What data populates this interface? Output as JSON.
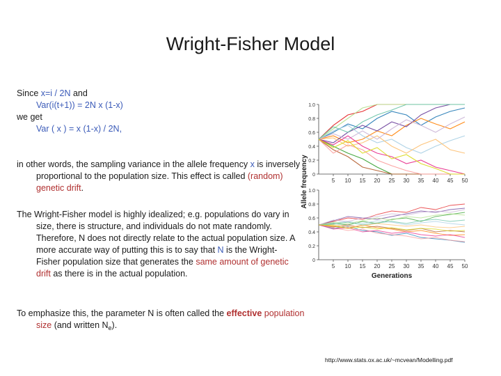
{
  "slide": {
    "title": "Wright-Fisher Model",
    "p1": {
      "l1_a": "Since ",
      "l1_b": "x=i / 2N",
      "l1_c": " and",
      "l2": "Var(i(t+1)) = 2N x (1-x)",
      "l3": "we get",
      "l4": "Var ( x ) = x (1-x) / 2N,"
    },
    "p2": {
      "a": "in other words, the sampling variance in the allele frequency ",
      "b": "x",
      "c": " is inversely proportional to the population size. This effect is called ",
      "d": "(random) genetic drift",
      "e": "."
    },
    "p3": {
      "a": "The Wright-Fisher model is highly idealized; e.g. populations do vary in size, there is structure, and individuals do not mate randomly.  Therefore, N does not directly relate to the actual population size.  A more accurate way of putting this is to say that ",
      "b": "N",
      "c": " is the  Wright-Fisher population size that generates the ",
      "d": "same amount of genetic drift",
      "e": " as there is in the actual population."
    },
    "p4": {
      "a": "To emphasize this, the parameter N is often called the ",
      "b": "effective",
      "c": " ",
      "d": "population size",
      "e": " (and written N",
      "sub": "e",
      "f": ")."
    },
    "source": "http://www.stats.ox.ac.uk/~mcvean/Modelling.pdf"
  },
  "figure": {
    "ylabel": "Allele frequency",
    "xlabel": "Generations",
    "yticks": [
      "0",
      "0.2",
      "0.4",
      "0.6",
      "0.8",
      "1.0"
    ],
    "xticks": [
      "5",
      "10",
      "15",
      "20",
      "25",
      "30",
      "35",
      "40",
      "45",
      "50"
    ],
    "colors": [
      "#e41a1c",
      "#1f78b4",
      "#33a02c",
      "#ff7f00",
      "#6a3d9a",
      "#b15928",
      "#a6cee3",
      "#fb9a99",
      "#b2df8a",
      "#fdbf6f",
      "#cab2d6",
      "#e7298a",
      "#66c2a5",
      "#d9d919"
    ]
  },
  "chart_data": [
    {
      "type": "line",
      "title": "",
      "xlabel": "",
      "ylabel": "Allele frequency",
      "xlim": [
        0,
        50
      ],
      "ylim": [
        0,
        1
      ],
      "x": [
        0,
        5,
        10,
        15,
        20,
        25,
        30,
        35,
        40,
        45,
        50
      ],
      "series": [
        {
          "values": [
            0.5,
            0.7,
            0.85,
            0.9,
            1.0,
            1.0,
            1.0,
            1.0,
            1.0,
            1.0,
            1.0
          ]
        },
        {
          "values": [
            0.5,
            0.6,
            0.72,
            0.65,
            0.8,
            0.9,
            0.85,
            0.7,
            0.82,
            0.9,
            0.95
          ]
        },
        {
          "values": [
            0.5,
            0.4,
            0.3,
            0.22,
            0.1,
            0.0,
            0.0,
            0.0,
            0.0,
            0.0,
            0.0
          ]
        },
        {
          "values": [
            0.5,
            0.55,
            0.45,
            0.5,
            0.62,
            0.55,
            0.7,
            0.8,
            0.72,
            0.65,
            0.75
          ]
        },
        {
          "values": [
            0.5,
            0.45,
            0.6,
            0.7,
            0.62,
            0.75,
            0.68,
            0.85,
            0.95,
            1.0,
            1.0
          ]
        },
        {
          "values": [
            0.5,
            0.35,
            0.25,
            0.1,
            0.05,
            0.0,
            0.0,
            0.0,
            0.0,
            0.0,
            0.0
          ]
        },
        {
          "values": [
            0.5,
            0.62,
            0.7,
            0.55,
            0.45,
            0.5,
            0.38,
            0.3,
            0.4,
            0.48,
            0.55
          ]
        },
        {
          "values": [
            0.5,
            0.3,
            0.42,
            0.35,
            0.2,
            0.12,
            0.05,
            0.0,
            0.0,
            0.0,
            0.0
          ]
        },
        {
          "values": [
            0.5,
            0.65,
            0.8,
            0.95,
            1.0,
            1.0,
            1.0,
            1.0,
            1.0,
            1.0,
            1.0
          ]
        },
        {
          "values": [
            0.5,
            0.52,
            0.4,
            0.45,
            0.55,
            0.4,
            0.3,
            0.42,
            0.5,
            0.35,
            0.3
          ]
        },
        {
          "values": [
            0.5,
            0.58,
            0.5,
            0.62,
            0.5,
            0.65,
            0.78,
            0.7,
            0.6,
            0.72,
            0.82
          ]
        },
        {
          "values": [
            0.5,
            0.42,
            0.55,
            0.4,
            0.3,
            0.25,
            0.15,
            0.2,
            0.1,
            0.05,
            0.0
          ]
        },
        {
          "values": [
            0.5,
            0.68,
            0.6,
            0.75,
            0.85,
            0.92,
            1.0,
            1.0,
            1.0,
            1.0,
            1.0
          ]
        },
        {
          "values": [
            0.5,
            0.38,
            0.48,
            0.3,
            0.38,
            0.22,
            0.28,
            0.15,
            0.08,
            0.0,
            0.0
          ]
        }
      ]
    },
    {
      "type": "line",
      "title": "",
      "xlabel": "Generations",
      "ylabel": "Allele frequency",
      "xlim": [
        0,
        50
      ],
      "ylim": [
        0,
        1
      ],
      "x": [
        0,
        5,
        10,
        15,
        20,
        25,
        30,
        35,
        40,
        45,
        50
      ],
      "series": [
        {
          "values": [
            0.5,
            0.55,
            0.6,
            0.58,
            0.65,
            0.7,
            0.68,
            0.75,
            0.72,
            0.78,
            0.8
          ]
        },
        {
          "values": [
            0.5,
            0.45,
            0.48,
            0.42,
            0.4,
            0.35,
            0.38,
            0.32,
            0.3,
            0.28,
            0.25
          ]
        },
        {
          "values": [
            0.5,
            0.52,
            0.5,
            0.55,
            0.52,
            0.58,
            0.6,
            0.55,
            0.62,
            0.65,
            0.68
          ]
        },
        {
          "values": [
            0.5,
            0.48,
            0.45,
            0.5,
            0.46,
            0.44,
            0.4,
            0.42,
            0.38,
            0.35,
            0.36
          ]
        },
        {
          "values": [
            0.5,
            0.56,
            0.62,
            0.6,
            0.58,
            0.62,
            0.66,
            0.7,
            0.68,
            0.72,
            0.74
          ]
        },
        {
          "values": [
            0.5,
            0.47,
            0.5,
            0.46,
            0.48,
            0.45,
            0.42,
            0.45,
            0.4,
            0.42,
            0.4
          ]
        },
        {
          "values": [
            0.5,
            0.53,
            0.55,
            0.52,
            0.56,
            0.54,
            0.5,
            0.53,
            0.55,
            0.52,
            0.5
          ]
        },
        {
          "values": [
            0.5,
            0.46,
            0.42,
            0.44,
            0.38,
            0.36,
            0.34,
            0.3,
            0.32,
            0.28,
            0.26
          ]
        },
        {
          "values": [
            0.5,
            0.54,
            0.52,
            0.56,
            0.6,
            0.57,
            0.62,
            0.6,
            0.64,
            0.66,
            0.64
          ]
        },
        {
          "values": [
            0.5,
            0.5,
            0.47,
            0.49,
            0.52,
            0.5,
            0.48,
            0.5,
            0.47,
            0.46,
            0.48
          ]
        },
        {
          "values": [
            0.5,
            0.57,
            0.55,
            0.6,
            0.62,
            0.66,
            0.64,
            0.68,
            0.7,
            0.68,
            0.72
          ]
        },
        {
          "values": [
            0.5,
            0.44,
            0.46,
            0.4,
            0.42,
            0.38,
            0.4,
            0.36,
            0.34,
            0.36,
            0.32
          ]
        },
        {
          "values": [
            0.5,
            0.51,
            0.54,
            0.5,
            0.53,
            0.55,
            0.52,
            0.56,
            0.58,
            0.55,
            0.57
          ]
        },
        {
          "values": [
            0.5,
            0.49,
            0.45,
            0.47,
            0.44,
            0.46,
            0.43,
            0.45,
            0.44,
            0.41,
            0.42
          ]
        }
      ]
    }
  ]
}
